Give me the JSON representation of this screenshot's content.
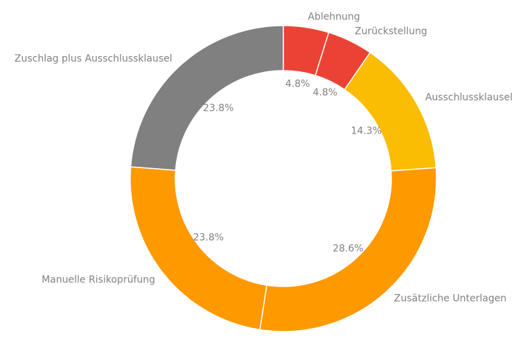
{
  "chart_data": {
    "type": "pie",
    "variant": "donut",
    "title": "",
    "legend": "none",
    "slices": [
      {
        "label": "Ablehnung",
        "value": 4.8,
        "display": "4.8%",
        "color": "#ea4335"
      },
      {
        "label": "Zurückstellung",
        "value": 4.8,
        "display": "4.8%",
        "color": "#ea4335"
      },
      {
        "label": "Ausschlussklausel",
        "value": 14.3,
        "display": "14.3%",
        "color": "#fbbc04"
      },
      {
        "label": "Zusätzliche Unterlagen",
        "value": 28.6,
        "display": "28.6%",
        "color": "#ff9900"
      },
      {
        "label": "Manuelle Risikoprüfung",
        "value": 23.8,
        "display": "23.8%",
        "color": "#ff9900"
      },
      {
        "label": "Zuschlag plus Ausschlussklausel",
        "value": 23.8,
        "display": "23.8%",
        "color": "#808080"
      }
    ]
  }
}
